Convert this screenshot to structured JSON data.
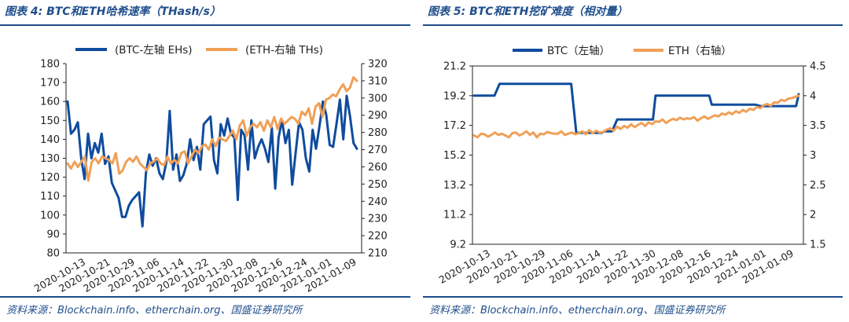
{
  "colors": {
    "blue": "#0f4c9e",
    "orange": "#f0a057",
    "title": "#1f4e8c"
  },
  "figures": [
    {
      "title": "图表 4:  BTC和ETH哈希速率（THash/s）",
      "source": "资料来源：Blockchain.info、etherchain.org、国盛证券研究所"
    },
    {
      "title": "图表 5:  BTC和ETH挖矿难度（相对量）",
      "source": "资料来源：Blockchain.info、etherchain.org、国盛证券研究所"
    }
  ],
  "chart_data": [
    {
      "type": "line",
      "title": "BTC和ETH哈希速率（THash/s）",
      "x_ticks": [
        "2020-10-13",
        "2020-10-21",
        "2020-10-29",
        "2020-11-06",
        "2020-11-14",
        "2020-11-22",
        "2020-11-30",
        "2020-12-08",
        "2020-12-16",
        "2020-12-24",
        "2021-01-01",
        "2021-01-09"
      ],
      "y_left": {
        "ticks": [
          80,
          90,
          100,
          110,
          120,
          130,
          140,
          150,
          160,
          170,
          180
        ],
        "lim": [
          80,
          180
        ]
      },
      "y_right": {
        "ticks": [
          210,
          220,
          230,
          240,
          250,
          260,
          270,
          280,
          290,
          300,
          310,
          320
        ],
        "lim": [
          210,
          320
        ]
      },
      "series": [
        {
          "name": "(BTC-左轴 EHs)",
          "axis": "left",
          "color": "#0f4c9e",
          "values": [
            160,
            143,
            145,
            149,
            130,
            119,
            143,
            130,
            138,
            133,
            143,
            127,
            131,
            117,
            113,
            109,
            99,
            99,
            105,
            108,
            110,
            112,
            94,
            122,
            132,
            126,
            130,
            122,
            119,
            128,
            155,
            124,
            132,
            118,
            121,
            127,
            140,
            129,
            136,
            124,
            148,
            150,
            152,
            129,
            122,
            148,
            142,
            151,
            143,
            141,
            108,
            145,
            142,
            124,
            150,
            130,
            136,
            140,
            135,
            128,
            146,
            114,
            141,
            150,
            138,
            145,
            116,
            133,
            149,
            145,
            130,
            123,
            145,
            135,
            147,
            160,
            153,
            137,
            136,
            148,
            161,
            140,
            163,
            152,
            138,
            135
          ],
          "x_start": 0,
          "x_end": 88
        },
        {
          "name": "(ETH-右轴 THs)",
          "axis": "right",
          "color": "#f0a057",
          "values": [
            262,
            259,
            263,
            260,
            263,
            266,
            252,
            263,
            265,
            262,
            266,
            265,
            264,
            262,
            268,
            256,
            258,
            263,
            265,
            263,
            266,
            262,
            260,
            258,
            262,
            263,
            265,
            262,
            261,
            266,
            262,
            264,
            262,
            268,
            269,
            262,
            266,
            270,
            268,
            272,
            273,
            270,
            276,
            272,
            277,
            276,
            275,
            278,
            281,
            276,
            284,
            287,
            278,
            283,
            285,
            283,
            286,
            281,
            287,
            283,
            289,
            282,
            288,
            285,
            287,
            289,
            288,
            285,
            292,
            290,
            294,
            285,
            295,
            297,
            289,
            299,
            300,
            302,
            301,
            305,
            308,
            304,
            306,
            312,
            310
          ],
          "x_start": 0,
          "x_end": 88
        }
      ]
    },
    {
      "type": "line",
      "title": "BTC和ETH挖矿难度（相对量）",
      "x_ticks": [
        "2020-10-13",
        "2020-10-21",
        "2020-10-29",
        "2020-11-06",
        "2020-11-14",
        "2020-11-22",
        "2020-11-30",
        "2020-12-08",
        "2020-12-16",
        "2020-12-24",
        "2021-01-01",
        "2021-01-09"
      ],
      "y_left": {
        "ticks": [
          9.2,
          11.2,
          13.2,
          15.2,
          17.2,
          19.2,
          21.2
        ],
        "lim": [
          9.2,
          21.2
        ]
      },
      "y_right": {
        "ticks": [
          1.5,
          2,
          2.5,
          3,
          3.5,
          4,
          4.5
        ],
        "lim": [
          1.5,
          4.5
        ]
      },
      "series": [
        {
          "name": "BTC（左轴）",
          "axis": "left",
          "color": "#0f4c9e",
          "steps": [
            [
              0,
              19.2
            ],
            [
              8,
              19.2
            ],
            [
              10,
              20.0
            ],
            [
              38,
              20.0
            ],
            [
              40,
              16.7
            ],
            [
              50,
              16.7
            ],
            [
              51,
              16.8
            ],
            [
              54,
              16.8
            ],
            [
              56,
              17.6
            ],
            [
              70,
              17.6
            ],
            [
              71,
              19.2
            ],
            [
              92,
              19.2
            ],
            [
              93,
              18.6
            ],
            [
              110,
              18.6
            ],
            [
              112,
              18.5
            ],
            [
              126,
              18.5
            ],
            [
              127,
              19.3
            ]
          ],
          "x_end": 127
        },
        {
          "name": "ETH（右轴）",
          "axis": "right",
          "color": "#f0a057",
          "values": [
            3.33,
            3.3,
            3.36,
            3.35,
            3.31,
            3.34,
            3.38,
            3.34,
            3.36,
            3.33,
            3.3,
            3.37,
            3.38,
            3.33,
            3.36,
            3.4,
            3.34,
            3.38,
            3.3,
            3.36,
            3.35,
            3.39,
            3.37,
            3.36,
            3.36,
            3.4,
            3.34,
            3.36,
            3.38,
            3.35,
            3.37,
            3.4,
            3.35,
            3.42,
            3.37,
            3.41,
            3.38,
            3.39,
            3.43,
            3.45,
            3.41,
            3.48,
            3.44,
            3.49,
            3.46,
            3.52,
            3.47,
            3.51,
            3.54,
            3.49,
            3.55,
            3.52,
            3.57,
            3.56,
            3.6,
            3.54,
            3.58,
            3.61,
            3.59,
            3.63,
            3.6,
            3.62,
            3.61,
            3.64,
            3.58,
            3.62,
            3.65,
            3.61,
            3.64,
            3.67,
            3.65,
            3.7,
            3.68,
            3.72,
            3.69,
            3.74,
            3.71,
            3.76,
            3.73,
            3.78,
            3.76,
            3.81,
            3.79,
            3.84,
            3.86,
            3.83,
            3.89,
            3.88,
            3.93,
            3.91,
            3.95,
            3.96,
            3.98,
            4.0
          ],
          "x_end": 127
        }
      ]
    }
  ]
}
